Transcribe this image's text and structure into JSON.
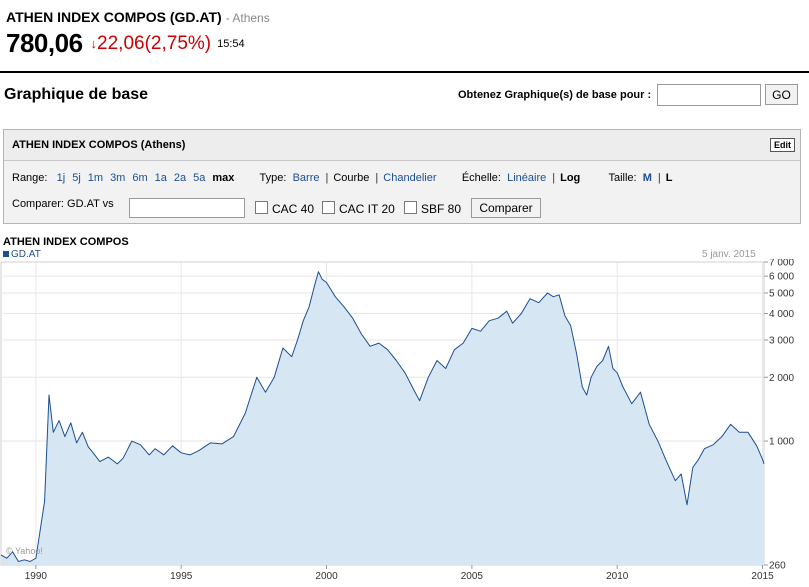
{
  "header": {
    "title": "ATHEN INDEX COMPOS (GD.AT)",
    "exchange": "- Athens",
    "price": "780,06",
    "change_arrow": "↓",
    "change": "22,06(2,75%)",
    "time": "15:54"
  },
  "section": {
    "title": "Graphique de base",
    "lookup_label": "Obtenez Graphique(s) de base pour :",
    "lookup_value": "",
    "go_label": "GO"
  },
  "panel": {
    "title": "ATHEN INDEX COMPOS (Athens)",
    "edit_label": "Edit",
    "range_label": "Range:",
    "ranges": [
      "1j",
      "5j",
      "1m",
      "3m",
      "6m",
      "1a",
      "2a",
      "5a",
      "max"
    ],
    "selected_range": "max",
    "type_label": "Type:",
    "types": [
      "Barre",
      "Courbe",
      "Chandelier"
    ],
    "selected_type": "Courbe",
    "scale_label": "Échelle:",
    "scales": [
      "Linéaire",
      "Log"
    ],
    "selected_scale": "Log",
    "size_label": "Taille:",
    "sizes": [
      "M",
      "L"
    ],
    "selected_size": "L",
    "compare_label": "Comparer: GD.AT vs",
    "compare_value": "",
    "compare_options": [
      "CAC 40",
      "CAC IT 20",
      "SBF 80"
    ],
    "compare_button": "Comparer"
  },
  "chart_data": {
    "type": "area",
    "title": "ATHEN INDEX COMPOS",
    "legend": [
      "GD.AT"
    ],
    "date_label": "5 janv. 2015",
    "watermark": "© Yahoo!",
    "y_scale": "log",
    "ylim": [
      260,
      7000
    ],
    "y_ticks": [
      260,
      1000,
      2000,
      3000,
      4000,
      5000,
      6000,
      7000
    ],
    "y_tick_labels": [
      "260",
      "1 000",
      "2 000",
      "3 000",
      "4 000",
      "5 000",
      "6 000",
      "7 000"
    ],
    "xlim": [
      1988.8,
      2015.05
    ],
    "x_ticks": [
      1990,
      1995,
      2000,
      2005,
      2010,
      2015
    ],
    "x_tick_labels": [
      "1990",
      "1995",
      "2000",
      "2005",
      "2010",
      "2015"
    ],
    "fill_color": "#d6e6f2",
    "line_color": "#1d4f91",
    "series": [
      {
        "name": "GD.AT",
        "x": [
          1988.8,
          1989.0,
          1989.2,
          1989.4,
          1989.6,
          1989.8,
          1990.0,
          1990.3,
          1990.45,
          1990.6,
          1990.8,
          1991.0,
          1991.2,
          1991.4,
          1991.6,
          1991.8,
          1992.0,
          1992.2,
          1992.5,
          1992.8,
          1993.0,
          1993.3,
          1993.6,
          1993.9,
          1994.1,
          1994.4,
          1994.7,
          1995.0,
          1995.3,
          1995.6,
          1996.0,
          1996.4,
          1996.8,
          1997.2,
          1997.6,
          1997.9,
          1998.2,
          1998.5,
          1998.8,
          1999.0,
          1999.2,
          1999.4,
          1999.6,
          1999.72,
          1999.85,
          2000.0,
          2000.3,
          2000.6,
          2000.9,
          2001.2,
          2001.5,
          2001.8,
          2002.1,
          2002.4,
          2002.7,
          2003.0,
          2003.2,
          2003.5,
          2003.8,
          2004.1,
          2004.4,
          2004.7,
          2005.0,
          2005.3,
          2005.6,
          2005.9,
          2006.2,
          2006.4,
          2006.7,
          2007.0,
          2007.3,
          2007.6,
          2007.8,
          2008.0,
          2008.2,
          2008.4,
          2008.6,
          2008.8,
          2008.95,
          2009.1,
          2009.3,
          2009.5,
          2009.7,
          2009.85,
          2010.0,
          2010.2,
          2010.5,
          2010.8,
          2011.1,
          2011.4,
          2011.7,
          2012.0,
          2012.2,
          2012.4,
          2012.6,
          2012.8,
          2013.0,
          2013.3,
          2013.6,
          2013.9,
          2014.2,
          2014.5,
          2014.8,
          2015.0,
          2015.05
        ],
        "y": [
          290,
          280,
          300,
          270,
          275,
          270,
          280,
          520,
          1650,
          1100,
          1250,
          1050,
          1220,
          980,
          1100,
          940,
          870,
          800,
          840,
          780,
          830,
          1000,
          960,
          860,
          920,
          860,
          950,
          880,
          860,
          900,
          980,
          970,
          1050,
          1350,
          2000,
          1700,
          2000,
          2750,
          2500,
          3000,
          3700,
          4300,
          5500,
          6300,
          5800,
          5600,
          4800,
          4300,
          3800,
          3200,
          2800,
          2900,
          2700,
          2400,
          2100,
          1750,
          1550,
          2000,
          2400,
          2200,
          2700,
          2900,
          3400,
          3300,
          3700,
          3800,
          4100,
          3600,
          4000,
          4700,
          4500,
          5000,
          4800,
          4900,
          3900,
          3500,
          2600,
          1800,
          1650,
          2000,
          2250,
          2400,
          2800,
          2200,
          2100,
          1800,
          1500,
          1700,
          1200,
          1000,
          800,
          650,
          700,
          500,
          750,
          820,
          920,
          960,
          1050,
          1200,
          1100,
          1100,
          950,
          820,
          780
        ]
      }
    ]
  }
}
